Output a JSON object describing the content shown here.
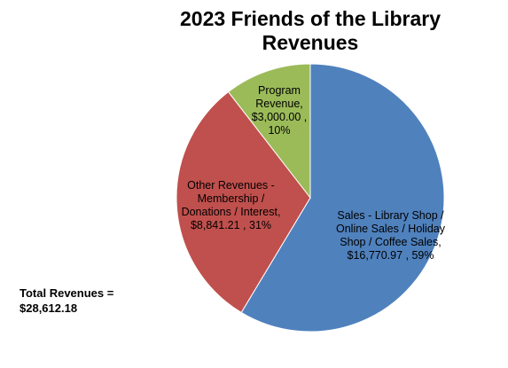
{
  "chart_data": {
    "type": "pie",
    "title": "2023 Friends of the Library Revenues",
    "slices": [
      {
        "key": "sales",
        "label_lines": [
          "Sales - Library Shop /",
          "Online Sales / Holiday",
          "Shop / Coffee Sales,",
          "$16,770.97 , 59%"
        ],
        "value": 16770.97,
        "percent": 59,
        "color": "#4f81bd"
      },
      {
        "key": "other",
        "label_lines": [
          "Other Revenues -",
          "Membership /",
          "Donations / Interest,",
          "$8,841.21 , 31%"
        ],
        "value": 8841.21,
        "percent": 31,
        "color": "#c0504d"
      },
      {
        "key": "program",
        "label_lines": [
          "Program",
          "Revenue,",
          "$3,000.00 ,",
          "10%"
        ],
        "value": 3000.0,
        "percent": 10,
        "color": "#9bbb59"
      }
    ],
    "start_angle_deg": 0,
    "direction": "clockwise",
    "legend": "none"
  },
  "annotation": {
    "lines": [
      "Total Revenues =",
      "$28,612.18"
    ]
  }
}
